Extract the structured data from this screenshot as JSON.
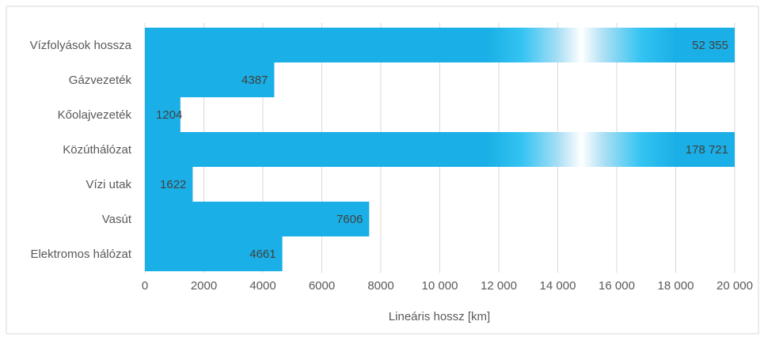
{
  "chart_data": {
    "type": "bar",
    "orientation": "horizontal",
    "categories": [
      "Vízfolyások hossza",
      "Gázvezeték",
      "Kőolajvezeték",
      "Közúthálózat",
      "Vízi utak",
      "Vasút",
      "Elektromos hálózat"
    ],
    "values": [
      52355,
      4387,
      1204,
      178721,
      1622,
      7606,
      4661
    ],
    "data_labels": [
      "52 355",
      "4387",
      "1204",
      "178 721",
      "1622",
      "7606",
      "4661"
    ],
    "truncated_bars": [
      "Vízfolyások hossza",
      "Közúthálózat"
    ],
    "title": "",
    "xlabel": "Lineáris hossz [km]",
    "ylabel": "",
    "xlim": [
      0,
      20000
    ],
    "xticks": [
      0,
      2000,
      4000,
      6000,
      8000,
      10000,
      12000,
      14000,
      16000,
      18000,
      20000
    ],
    "xtick_labels": [
      "0",
      "2000",
      "4000",
      "6000",
      "8000",
      "10 000",
      "12 000",
      "14 000",
      "16 000",
      "18 000",
      "20 000"
    ],
    "grid": "vertical",
    "legend": "none",
    "colors": {
      "bar": "#1aafe6",
      "grid": "#d9d9d9",
      "text": "#595959",
      "frame": "#d9d9d9"
    }
  }
}
